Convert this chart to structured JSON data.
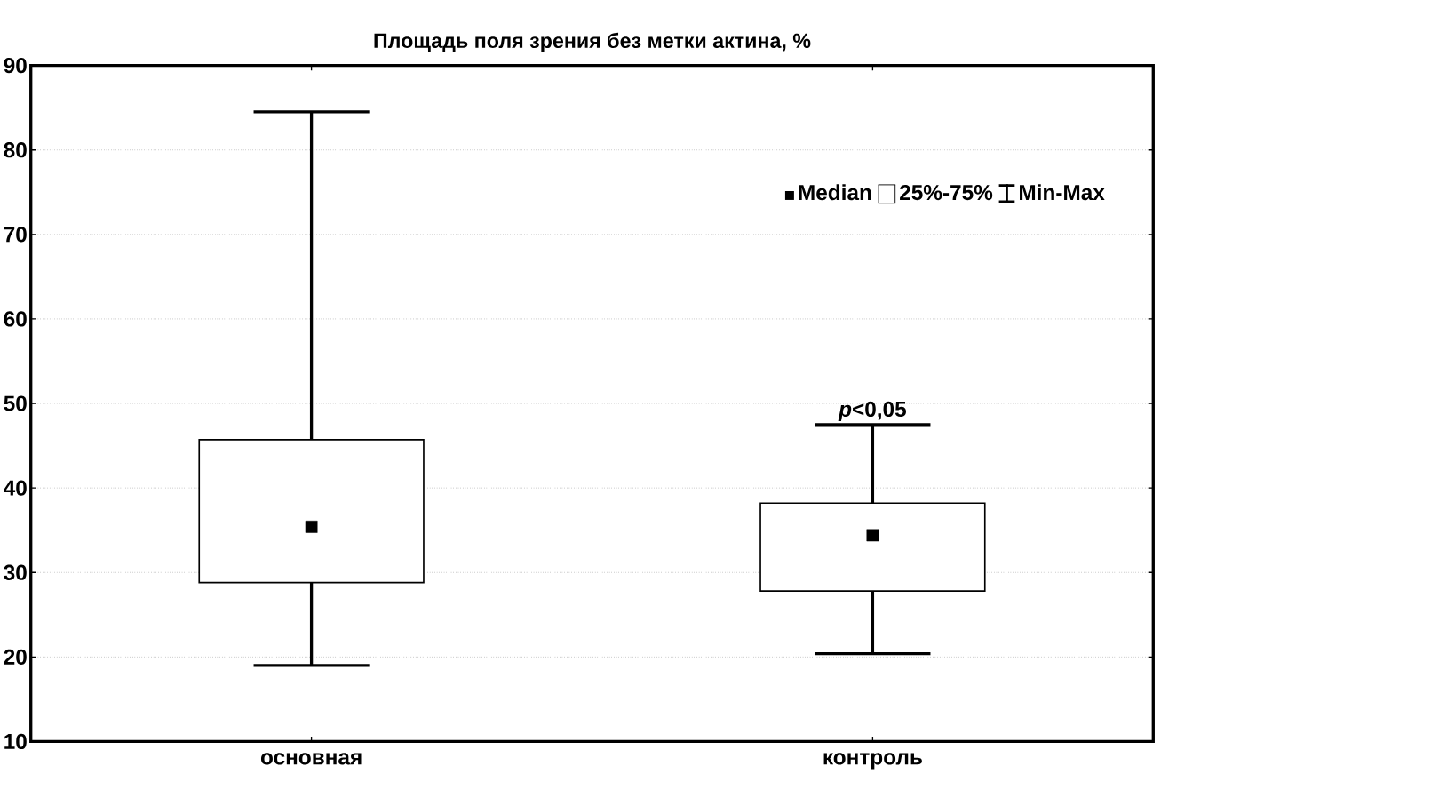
{
  "chart_data": {
    "type": "box",
    "title": "Площадь поля зрения без метки актина, %",
    "categories": [
      "основная",
      "контроль"
    ],
    "boxes": [
      {
        "low": 19.0,
        "q1": 28.8,
        "median": 35.4,
        "q3": 45.7,
        "high": 84.5
      },
      {
        "low": 20.4,
        "q1": 27.8,
        "median": 34.4,
        "q3": 38.2,
        "high": 47.5
      }
    ],
    "ylim": [
      10,
      90
    ],
    "yticks": [
      10,
      20,
      30,
      40,
      50,
      60,
      70,
      80,
      90
    ],
    "grid": "y",
    "annotations": [
      "Median",
      "25%-75%",
      "Min-Max",
      "*p*<0,05"
    ]
  }
}
